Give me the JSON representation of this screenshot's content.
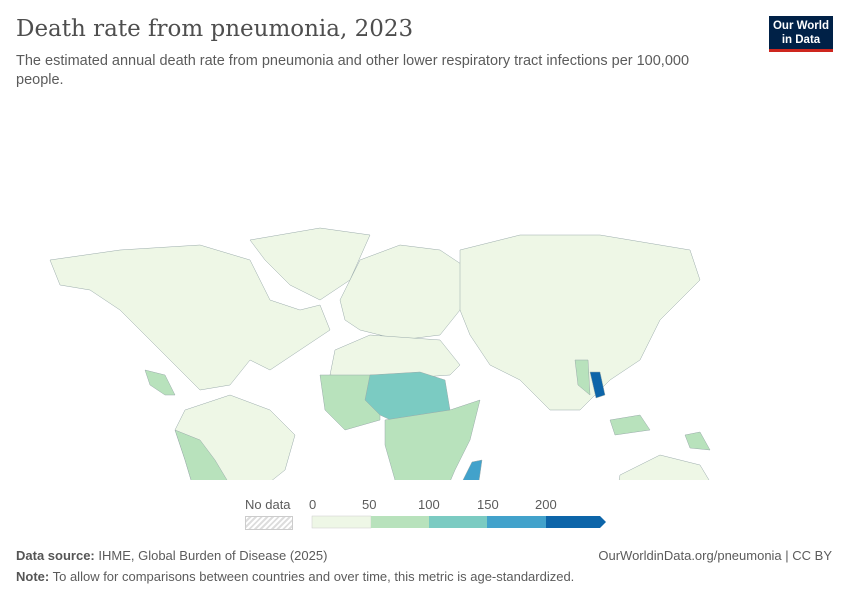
{
  "header": {
    "title": "Death rate from pneumonia, 2023",
    "subtitle": "The estimated annual death rate from pneumonia and other lower respiratory tract infections per 100,000 people.",
    "logo_line1": "Our World",
    "logo_line2": "in Data"
  },
  "legend": {
    "no_data": "No data",
    "ticks": [
      "0",
      "50",
      "100",
      "150",
      "200"
    ],
    "colors": [
      "#eef7e6",
      "#b8e2bc",
      "#7bcbc2",
      "#42a2cb",
      "#0d65a9"
    ]
  },
  "footer": {
    "source_label": "Data source:",
    "source": "IHME, Global Burden of Disease (2025)",
    "url": "OurWorldinData.org/pneumonia | CC BY",
    "note_label": "Note:",
    "note": "To allow for comparisons between countries and over time, this metric is age-standardized."
  }
}
